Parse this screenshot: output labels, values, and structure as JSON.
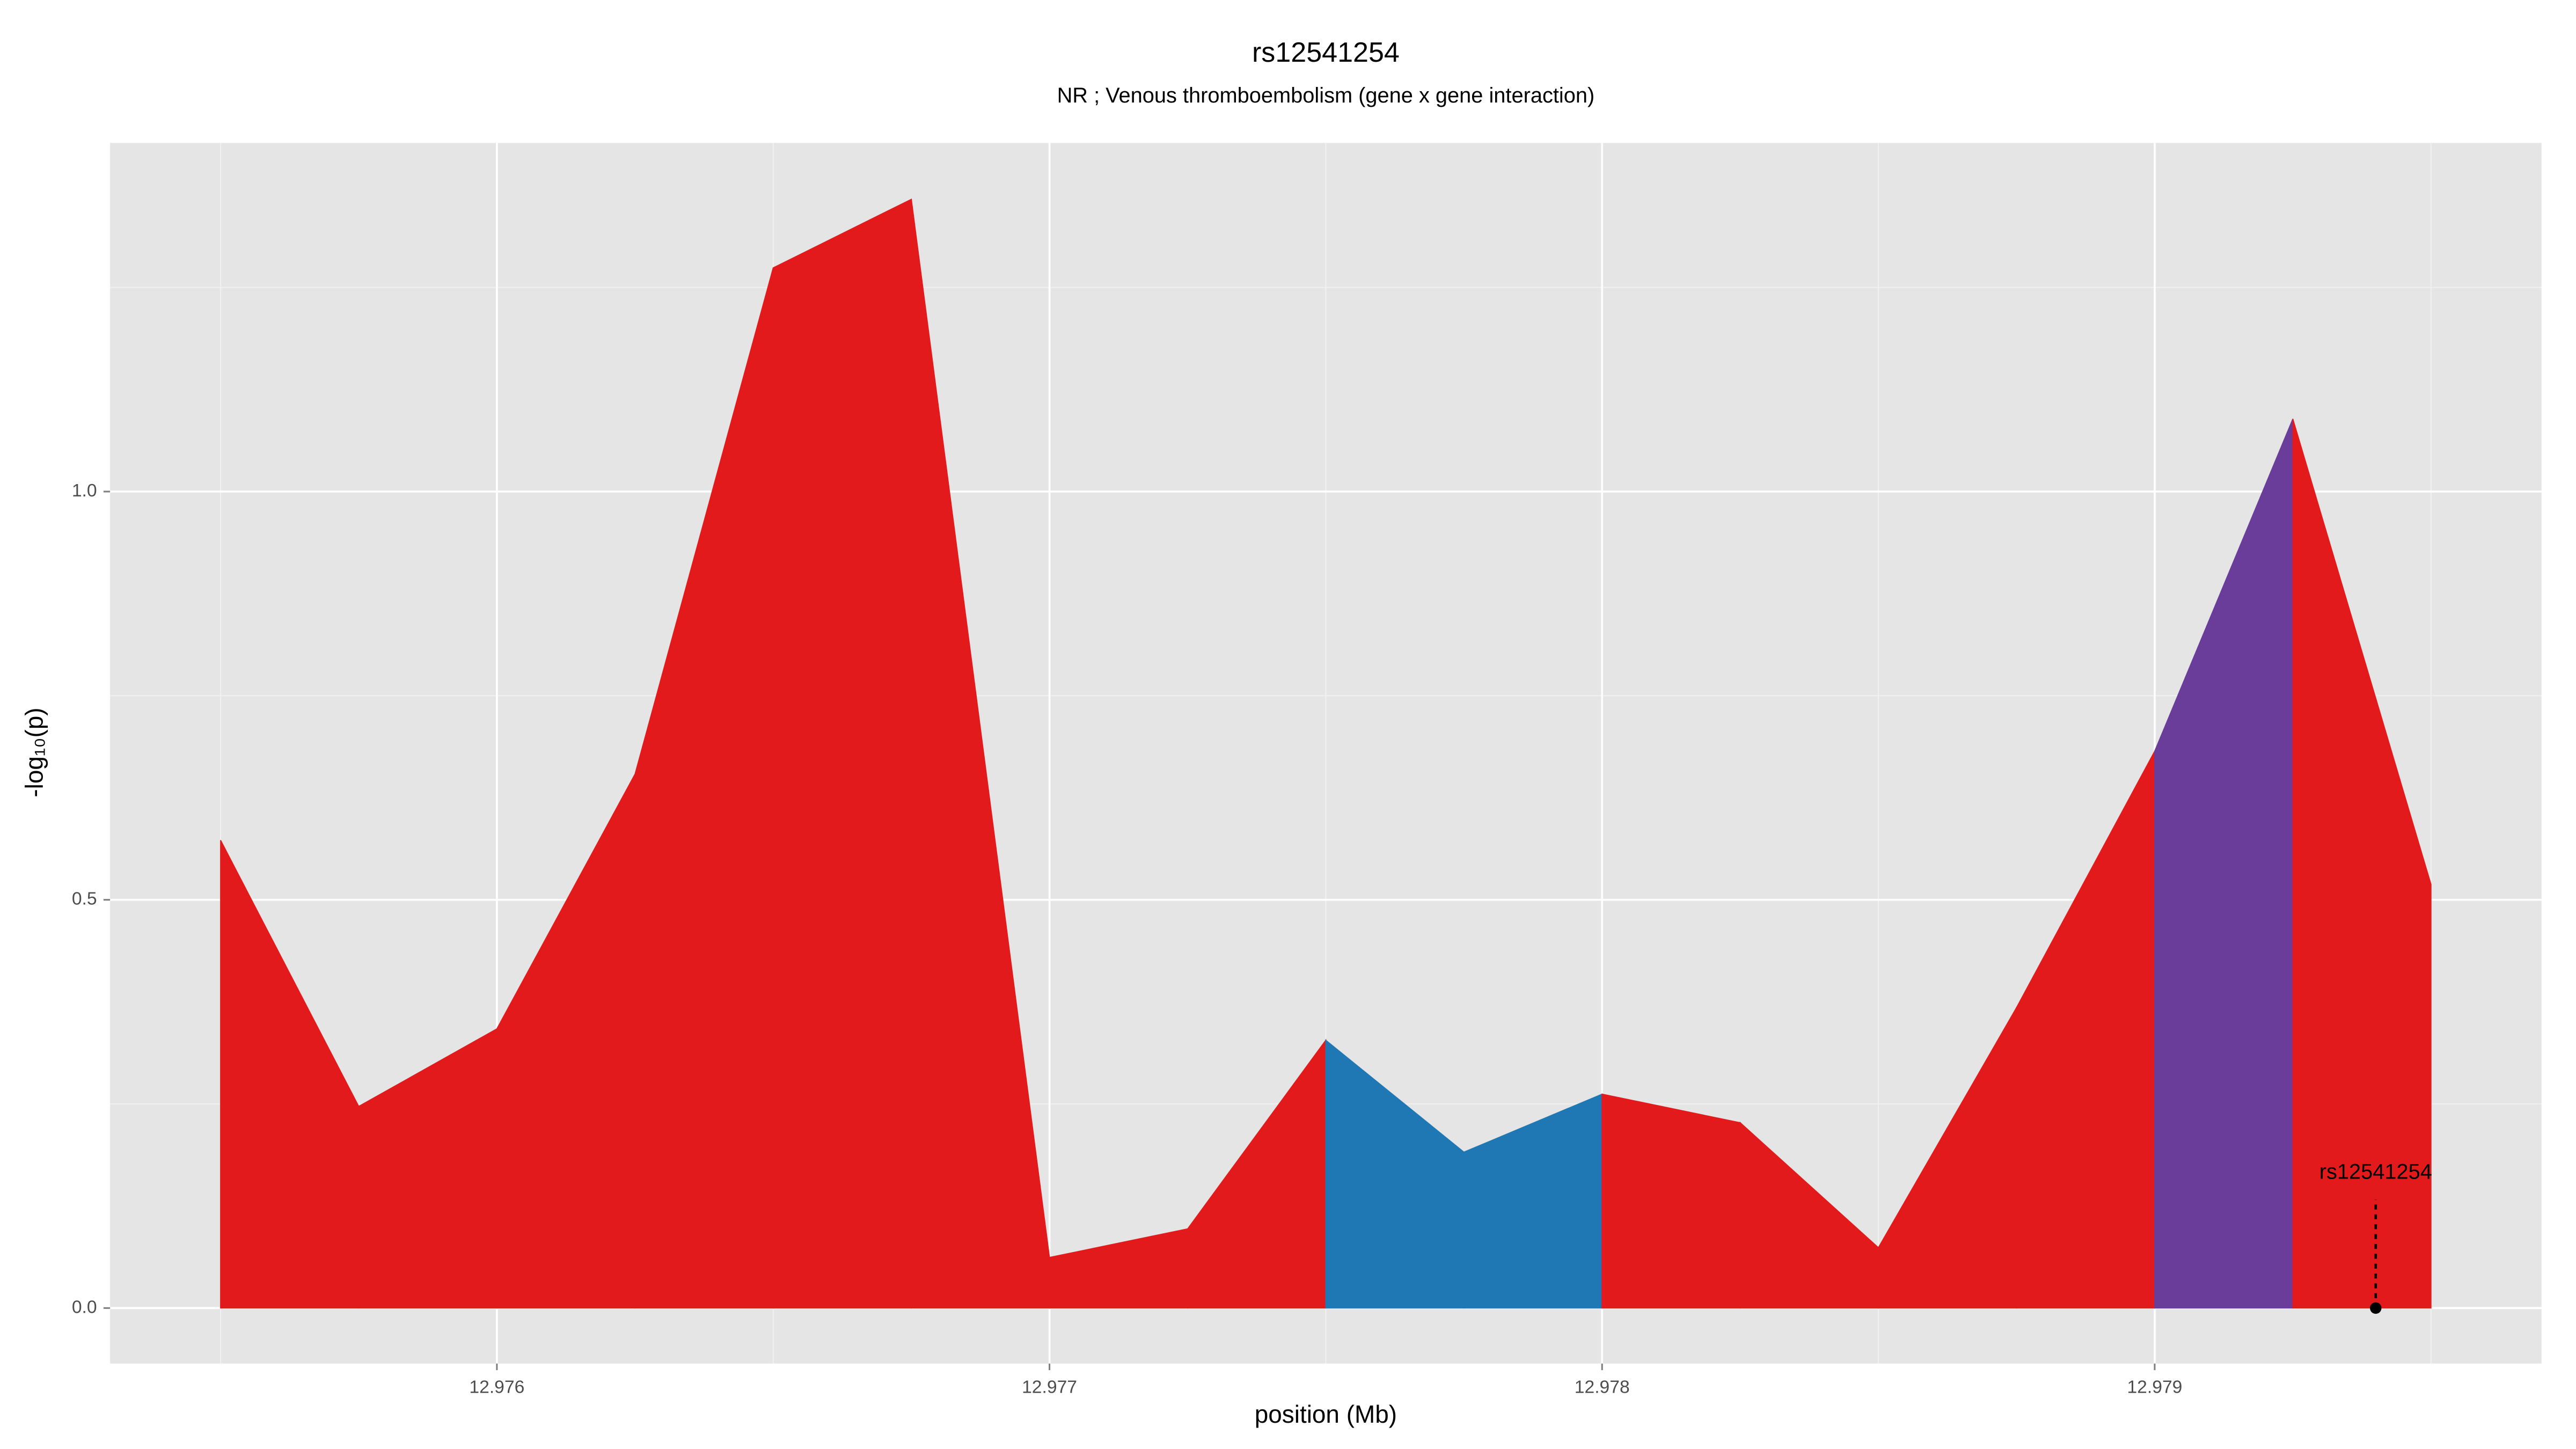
{
  "chart_data": {
    "type": "area",
    "title": "rs12541254",
    "subtitle": "NR ; Venous thromboembolism (gene x gene interaction)",
    "xlabel": "position (Mb)",
    "ylabel": "-log₁₀(p)",
    "x": [
      12.9755,
      12.97575,
      12.976,
      12.97625,
      12.9765,
      12.97675,
      12.977,
      12.97725,
      12.9775,
      12.97775,
      12.978,
      12.97825,
      12.9785,
      12.97875,
      12.979,
      12.97925,
      12.9795
    ],
    "values": [
      0.573,
      0.247,
      0.342,
      0.654,
      1.274,
      1.358,
      0.062,
      0.097,
      0.328,
      0.191,
      0.262,
      0.227,
      0.074,
      0.368,
      0.682,
      1.089,
      0.519
    ],
    "segment_colors": [
      "#e31a1c",
      "#e31a1c",
      "#e31a1c",
      "#e31a1c",
      "#e31a1c",
      "#e31a1c",
      "#e31a1c",
      "#e31a1c",
      "#1f78b4",
      "#1f78b4",
      "#e31a1c",
      "#e31a1c",
      "#e31a1c",
      "#e31a1c",
      "#6a3d9a",
      "#e31a1c"
    ],
    "xlim": [
      12.9753,
      12.9797
    ],
    "ylim": [
      -0.068,
      1.427
    ],
    "xticks": [
      12.976,
      12.977,
      12.978,
      12.979
    ],
    "yticks": [
      {
        "value": 0,
        "label": "0.0"
      },
      0.5,
      {
        "value": 1,
        "label": "1.0"
      }
    ],
    "x_minor_ticks": [
      12.9755,
      12.9765,
      12.9775,
      12.9785,
      12.9795
    ],
    "y_minor_ticks": [
      0.25,
      0.75,
      1.25
    ],
    "grid": true,
    "annotation": {
      "label": "rs12541254",
      "x": 12.9794,
      "y": 0,
      "line_top": 0.133
    }
  }
}
